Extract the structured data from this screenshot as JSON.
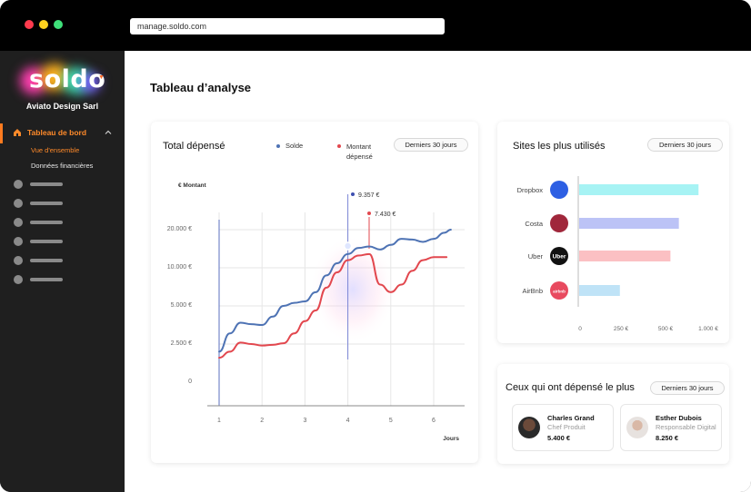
{
  "browser": {
    "url": "manage.soldo.com",
    "dots": {
      "close": "#ff3b4e",
      "minimize": "#ffd21f",
      "maximize": "#3fe07a"
    }
  },
  "sidebar": {
    "logo_text": "soldo",
    "company": "Aviato Design Sarl",
    "nav_main": "Tableau de bord",
    "nav_main_icon": "home-icon",
    "sub_items": [
      "Vue d'ensemble",
      "Données financières"
    ],
    "accent": "#ff7b1f"
  },
  "main": {
    "page_title": "Tableau d’analyse"
  },
  "total_card": {
    "title": "Total dépensé",
    "legend": [
      "Solde",
      "Montant dépensé"
    ],
    "range_pill": "Derniers 30 jours",
    "tooltip_solde": "9.357 €",
    "tooltip_montant": "7.430 €"
  },
  "sites_card": {
    "title": "Sites les plus utilisés",
    "range_pill": "Derniers 30 jours"
  },
  "spenders_card": {
    "title": "Ceux qui ont dépensé le plus",
    "range_pill": "Derniers 30 jours",
    "people": [
      {
        "name": "Charles Grand",
        "role": "Chef Produit",
        "amount": "5.400 €"
      },
      {
        "name": "Esther Dubois",
        "role": "Responsable Digital",
        "amount": "8.250 €"
      }
    ]
  },
  "chart_data": [
    {
      "type": "line",
      "title": "Total dépensé",
      "ylabel": "€ Montant",
      "xlabel": "Jours",
      "y_ticks": [
        "0",
        "2.500 €",
        "5.000 €",
        "10.000 €",
        "20.000 €"
      ],
      "x_ticks": [
        "1",
        "2",
        "3",
        "4",
        "5",
        "6"
      ],
      "series": [
        {
          "name": "Solde",
          "color": "#4e73b4",
          "x": [
            1.0,
            1.25,
            1.5,
            1.75,
            2.0,
            2.25,
            2.5,
            2.75,
            3.0,
            3.25,
            3.5,
            3.75,
            4.0,
            4.25,
            4.5,
            4.75,
            5.0,
            5.25,
            5.5,
            5.75,
            6.0,
            6.25,
            6.4
          ],
          "values": [
            2.0,
            3.2,
            3.9,
            3.8,
            3.75,
            4.3,
            5.0,
            5.2,
            5.3,
            5.9,
            7.0,
            7.8,
            8.4,
            8.8,
            8.9,
            8.7,
            9.0,
            9.4,
            9.35,
            9.2,
            9.4,
            9.8,
            10.0
          ]
        },
        {
          "name": "Montant dépensé",
          "color": "#e2474e",
          "x": [
            1.0,
            1.25,
            1.5,
            1.75,
            2.0,
            2.25,
            2.5,
            2.75,
            3.0,
            3.25,
            3.5,
            3.75,
            4.0,
            4.25,
            4.5,
            4.75,
            5.0,
            5.25,
            5.5,
            5.75,
            6.0,
            6.25,
            6.3
          ],
          "values": [
            1.6,
            2.0,
            2.6,
            2.5,
            2.4,
            2.45,
            2.55,
            3.2,
            4.0,
            4.7,
            6.2,
            7.2,
            8.0,
            8.3,
            8.4,
            6.4,
            5.9,
            6.4,
            7.3,
            8.0,
            8.2,
            8.2,
            8.2
          ]
        }
      ],
      "highlight_x": 4.0
    },
    {
      "type": "bar",
      "title": "Sites les plus utilisés",
      "orientation": "horizontal",
      "categories": [
        "Dropbox",
        "Costa",
        "Uber",
        "AirBnb"
      ],
      "values": [
        850,
        710,
        650,
        290
      ],
      "colors": [
        "#a7f3f4",
        "#bcc3f6",
        "#fbc0c3",
        "#bfe3f7"
      ],
      "icons": [
        "dropbox-icon",
        "costa-icon",
        "uber-icon",
        "airbnb-icon"
      ],
      "icon_labels": [
        "",
        "",
        "Uber",
        "airbnb"
      ],
      "icon_colors": [
        "#2d5fe3",
        "#a0273b",
        "#111111",
        "#e84a5f"
      ],
      "x_ticks": [
        "0",
        "250 €",
        "500 €",
        "1.000 €"
      ],
      "xlim": [
        0,
        1000
      ]
    }
  ]
}
